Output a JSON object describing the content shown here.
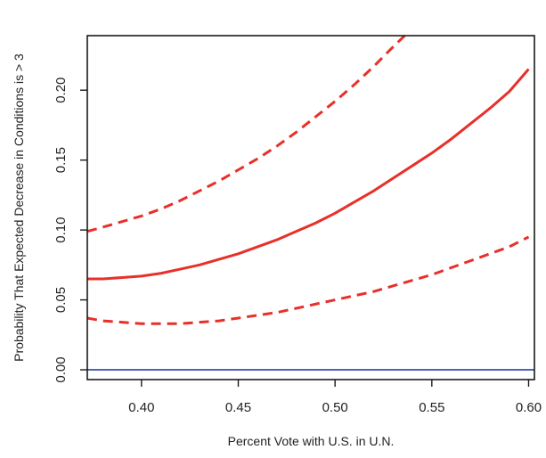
{
  "chart_data": {
    "type": "line",
    "title": "",
    "xlabel": "Percent Vote with U.S. in U.N.",
    "ylabel": "Probability That Expected Decrease in Conditions is > 3",
    "xlim": [
      0.372,
      0.603
    ],
    "ylim": [
      -0.007,
      0.239
    ],
    "x_ticks": [
      0.4,
      0.45,
      0.5,
      0.55,
      0.6
    ],
    "x_tick_labels": [
      "0.40",
      "0.45",
      "0.50",
      "0.55",
      "0.60"
    ],
    "y_ticks": [
      0.0,
      0.05,
      0.1,
      0.15,
      0.2
    ],
    "y_tick_labels": [
      "0.00",
      "0.05",
      "0.10",
      "0.15",
      "0.20"
    ],
    "grid": false,
    "legend": "none",
    "series": [
      {
        "style": "solid",
        "color": "#e8302a",
        "x": [
          0.372,
          0.38,
          0.39,
          0.4,
          0.41,
          0.42,
          0.43,
          0.44,
          0.45,
          0.46,
          0.47,
          0.48,
          0.49,
          0.5,
          0.51,
          0.52,
          0.53,
          0.54,
          0.55,
          0.56,
          0.57,
          0.58,
          0.59,
          0.6
        ],
        "y": [
          0.065,
          0.065,
          0.066,
          0.067,
          0.069,
          0.072,
          0.075,
          0.079,
          0.083,
          0.088,
          0.093,
          0.099,
          0.105,
          0.112,
          0.12,
          0.128,
          0.137,
          0.146,
          0.155,
          0.165,
          0.176,
          0.187,
          0.199,
          0.215
        ]
      },
      {
        "style": "dashed",
        "color": "#e8302a",
        "x": [
          0.372,
          0.38,
          0.39,
          0.4,
          0.41,
          0.42,
          0.43,
          0.44,
          0.45,
          0.46,
          0.47,
          0.48,
          0.49,
          0.5,
          0.51,
          0.52,
          0.53,
          0.536
        ],
        "y": [
          0.099,
          0.102,
          0.106,
          0.11,
          0.115,
          0.121,
          0.128,
          0.135,
          0.143,
          0.151,
          0.16,
          0.17,
          0.181,
          0.192,
          0.204,
          0.217,
          0.231,
          0.239
        ]
      },
      {
        "style": "dashed",
        "color": "#e8302a",
        "x": [
          0.372,
          0.38,
          0.39,
          0.4,
          0.41,
          0.42,
          0.43,
          0.44,
          0.45,
          0.46,
          0.47,
          0.48,
          0.49,
          0.5,
          0.51,
          0.52,
          0.53,
          0.54,
          0.55,
          0.56,
          0.57,
          0.58,
          0.59,
          0.6
        ],
        "y": [
          0.037,
          0.035,
          0.034,
          0.033,
          0.033,
          0.033,
          0.034,
          0.035,
          0.037,
          0.039,
          0.041,
          0.044,
          0.047,
          0.05,
          0.053,
          0.056,
          0.06,
          0.064,
          0.068,
          0.073,
          0.078,
          0.083,
          0.088,
          0.095
        ]
      },
      {
        "style": "solid",
        "color": "#3b4ba8",
        "x": [
          0.372,
          0.603
        ],
        "y": [
          0.0,
          0.0
        ]
      }
    ]
  }
}
